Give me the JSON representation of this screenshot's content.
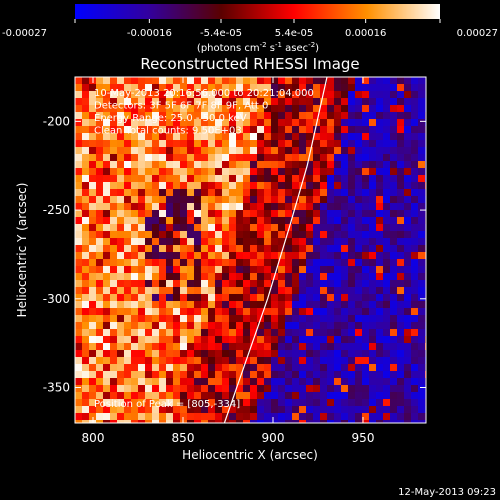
{
  "chart_data": {
    "type": "heatmap",
    "title": "Reconstructed RHESSI Image",
    "xlabel": "Heliocentric X (arcsec)",
    "ylabel": "Heliocentric Y (arcsec)",
    "xlim": [
      790,
      985
    ],
    "ylim": [
      -370,
      -175
    ],
    "xticks": [
      800,
      850,
      900,
      950
    ],
    "yticks": [
      -350,
      -300,
      -250,
      -200
    ],
    "colorbar": {
      "range": [
        -0.00027,
        0.00027
      ],
      "ticks": [
        "-0.00027",
        "-0.00016",
        "-5.4e-05",
        "5.4e-05",
        "0.00016",
        "0.00027"
      ],
      "tick_values": [
        -0.00027,
        -0.00016,
        -5.4e-05,
        5.4e-05,
        0.00016,
        0.00027
      ],
      "unit_prefix": "(photons cm",
      "unit_exp1": "-2",
      "unit_mid": " s",
      "unit_exp2": "-1",
      "unit_mid2": " asec",
      "unit_exp3": "-2",
      "unit_suffix": ")",
      "colormap": [
        "#0000ff",
        "#3200a0",
        "#5a0000",
        "#ff0000",
        "#ff9000",
        "#ffffff"
      ]
    },
    "annotations": [
      "10-May-2013 20:16:56.000 to 20:21:04.000",
      "Detectors: 3F 5F 6F 7F 8F 9F, Att 0",
      "Energy Range: 25.0 - 50.0 keV",
      "Clean    Total counts: 9.50E+03"
    ],
    "peak_label": "Position of Peak = [805,-334]",
    "peak_position": [
      805,
      -334
    ],
    "limb_curve": [
      [
        873,
        -370
      ],
      [
        885,
        -335
      ],
      [
        897,
        -300
      ],
      [
        909,
        -260
      ],
      [
        919,
        -225
      ],
      [
        930,
        -175
      ]
    ],
    "intensity_gradient": {
      "description_values": "per-pixel intensities not individually readable; regional levels in data units",
      "west_edge_level": 0.00022,
      "east_edge_level": -0.00022
    }
  },
  "footer": {
    "date": "12-May-2013 09:23"
  }
}
